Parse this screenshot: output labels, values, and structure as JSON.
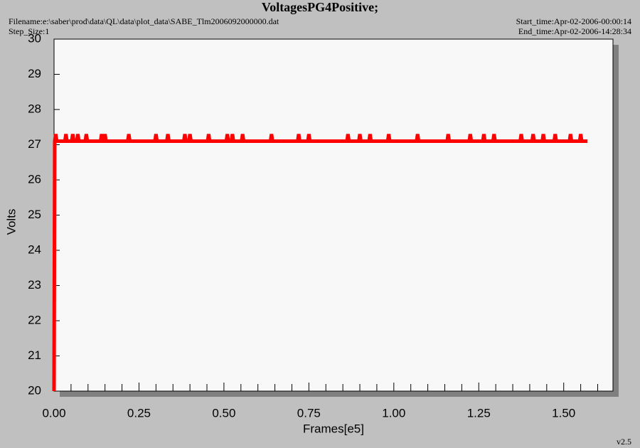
{
  "chart_data": {
    "type": "line",
    "title": "VoltagesPG4Positive;",
    "filename": "Filename:e:\\saber\\prod\\data\\QL\\data\\plot_data\\SABE_Tlm2006092000000.dat",
    "step_size": "Step_Size:1",
    "start_time": "Start_time:Apr-02-2006-00:00:14",
    "end_time": "End_time:Apr-02-2006-14:28:34",
    "version": "v2.5",
    "xlabel": "Frames[e5]",
    "ylabel": "Volts",
    "xlim": [
      0,
      1.645
    ],
    "ylim": [
      20,
      30
    ],
    "xticks": [
      {
        "value": 0,
        "label": "0.00"
      },
      {
        "value": 0.25,
        "label": "0.25"
      },
      {
        "value": 0.5,
        "label": "0.50"
      },
      {
        "value": 0.75,
        "label": "0.75"
      },
      {
        "value": 1,
        "label": "1.00"
      },
      {
        "value": 1.25,
        "label": "1.25"
      },
      {
        "value": 1.5,
        "label": "1.50"
      }
    ],
    "xminorticks": [
      0.05,
      0.1,
      0.15,
      0.2,
      0.3,
      0.35,
      0.4,
      0.45,
      0.55,
      0.6,
      0.65,
      0.7,
      0.8,
      0.85,
      0.9,
      0.95,
      1.05,
      1.1,
      1.15,
      1.2,
      1.3,
      1.35,
      1.4,
      1.45,
      1.55,
      1.6
    ],
    "yticks": [
      20,
      21,
      22,
      23,
      24,
      25,
      26,
      27,
      28,
      29,
      30
    ],
    "series": [
      {
        "color": "#ff0000",
        "x": [
          0,
          0.002,
          0.005,
          0.008,
          0.032,
          0.035,
          0.038,
          0.052,
          0.055,
          0.058,
          0.067,
          0.07,
          0.073,
          0.092,
          0.095,
          0.098,
          0.137,
          0.14,
          0.143,
          0.147,
          0.15,
          0.153,
          0.217,
          0.22,
          0.223,
          0.297,
          0.3,
          0.303,
          0.332,
          0.335,
          0.338,
          0.382,
          0.385,
          0.388,
          0.397,
          0.4,
          0.403,
          0.452,
          0.455,
          0.458,
          0.507,
          0.51,
          0.513,
          0.522,
          0.525,
          0.528,
          0.552,
          0.555,
          0.558,
          0.637,
          0.64,
          0.643,
          0.717,
          0.72,
          0.723,
          0.747,
          0.75,
          0.753,
          0.862,
          0.865,
          0.868,
          0.897,
          0.9,
          0.903,
          0.927,
          0.93,
          0.933,
          0.982,
          0.985,
          0.988,
          1.067,
          1.07,
          1.073,
          1.157,
          1.16,
          1.163,
          1.222,
          1.225,
          1.228,
          1.262,
          1.265,
          1.268,
          1.292,
          1.295,
          1.298,
          1.372,
          1.375,
          1.378,
          1.407,
          1.41,
          1.413,
          1.437,
          1.44,
          1.443,
          1.472,
          1.475,
          1.478,
          1.517,
          1.52,
          1.523,
          1.547,
          1.55,
          1.553,
          1.57
        ],
        "values": [
          20,
          27.1,
          27.3,
          27.1,
          27.1,
          27.3,
          27.1,
          27.1,
          27.3,
          27.1,
          27.1,
          27.3,
          27.1,
          27.1,
          27.3,
          27.1,
          27.1,
          27.3,
          27.1,
          27.1,
          27.3,
          27.1,
          27.1,
          27.3,
          27.1,
          27.1,
          27.3,
          27.1,
          27.1,
          27.3,
          27.1,
          27.1,
          27.3,
          27.1,
          27.1,
          27.3,
          27.1,
          27.1,
          27.3,
          27.1,
          27.1,
          27.3,
          27.1,
          27.1,
          27.3,
          27.1,
          27.1,
          27.3,
          27.1,
          27.1,
          27.3,
          27.1,
          27.1,
          27.3,
          27.1,
          27.1,
          27.3,
          27.1,
          27.1,
          27.3,
          27.1,
          27.1,
          27.3,
          27.1,
          27.1,
          27.3,
          27.1,
          27.1,
          27.3,
          27.1,
          27.1,
          27.3,
          27.1,
          27.1,
          27.3,
          27.1,
          27.1,
          27.3,
          27.1,
          27.1,
          27.3,
          27.1,
          27.1,
          27.3,
          27.1,
          27.1,
          27.3,
          27.1,
          27.1,
          27.3,
          27.1,
          27.1,
          27.3,
          27.1,
          27.1,
          27.3,
          27.1,
          27.1,
          27.3,
          27.1,
          27.1,
          27.3,
          27.1,
          27.1
        ]
      }
    ]
  }
}
